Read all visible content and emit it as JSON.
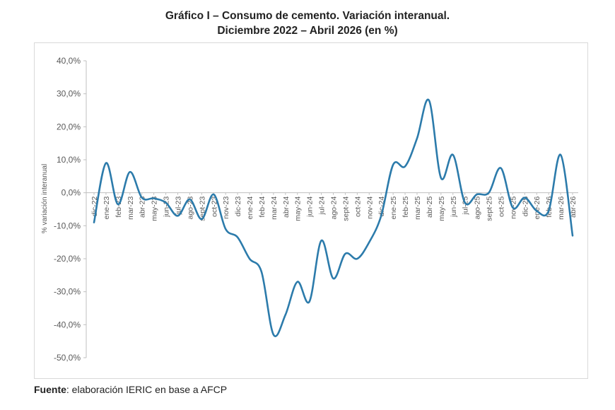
{
  "title_line1": "Gráfico I – Consumo de cemento. Variación interanual.",
  "title_line2": "Diciembre 2022 – Abril 2026 (en %)",
  "source_label": "Fuente",
  "source_text": ": elaboración IERIC en base a AFCP",
  "colors": {
    "line": "#2c7bab",
    "axis": "#bfbfbf",
    "text": "#595959"
  },
  "chart_data": {
    "type": "line",
    "title": "Gráfico I – Consumo de cemento. Variación interanual. Diciembre 2022 – Abril 2026 (en %)",
    "xlabel": "",
    "ylabel": "% variación interanual",
    "ylim": [
      -50,
      40
    ],
    "yticks": [
      40,
      30,
      20,
      10,
      0,
      -10,
      -20,
      -30,
      -40,
      -50
    ],
    "ytick_labels": [
      "40,0%",
      "30,0%",
      "20,0%",
      "10,0%",
      "0,0%",
      "-10,0%",
      "-20,0%",
      "-30,0%",
      "-40,0%",
      "-50,0%"
    ],
    "grid": false,
    "legend": "none",
    "categories": [
      "dic-22",
      "ene-23",
      "feb-23",
      "mar-23",
      "abr-23",
      "may-23",
      "jun-23",
      "jul-23",
      "ago-23",
      "sept-23",
      "oct-23",
      "nov-23",
      "dic-23",
      "ene-24",
      "feb-24",
      "mar-24",
      "abr-24",
      "may-24",
      "jun-24",
      "jul-24",
      "ago-24",
      "sept-24",
      "oct-24",
      "nov-24",
      "dic-24",
      "ene-25",
      "feb-25",
      "mar-25",
      "abr-25",
      "may-25",
      "jun-25",
      "jul-25",
      "ago-25",
      "sept-25",
      "oct-25",
      "nov-25",
      "dic-25",
      "ene-26",
      "feb-26",
      "mar-26",
      "abr-26"
    ],
    "series": [
      {
        "name": "",
        "values": [
          -9.0,
          9.0,
          -3.5,
          6.3,
          -1.5,
          -1.7,
          -3.0,
          -7.0,
          -2.0,
          -8.0,
          -0.5,
          -11.0,
          -13.5,
          -20.0,
          -24.0,
          -43.0,
          -37.0,
          -27.0,
          -33.0,
          -14.5,
          -26.0,
          -18.5,
          -20.0,
          -15.0,
          -7.0,
          8.5,
          8.0,
          16.5,
          28.0,
          4.5,
          11.5,
          -3.0,
          -0.5,
          0.0,
          7.5,
          -4.5,
          -1.5,
          -5.5,
          -5.5,
          11.5,
          -13.0
        ]
      }
    ]
  }
}
